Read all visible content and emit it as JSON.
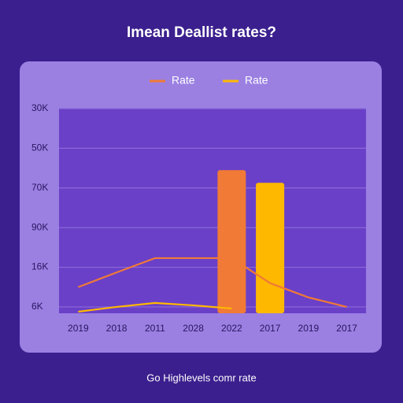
{
  "chart_data": {
    "type": "bar-line",
    "title": "Imean Deallist rates?",
    "caption": "Go Highlevels comr rate",
    "categories": [
      "2019",
      "2018",
      "2011",
      "2028",
      "2022",
      "2017",
      "2019",
      "2017"
    ],
    "series": [
      {
        "name": "Rate",
        "color": "#f07a36",
        "values": [
          0.5,
          0.87,
          1.23,
          1.23,
          1.23,
          0.6,
          0.24,
          0
        ],
        "bar_values": [
          null,
          null,
          null,
          null,
          3.45,
          null,
          null,
          null
        ]
      },
      {
        "name": "Rate",
        "color": "#ffb800",
        "values": [
          -0.12,
          0,
          0.1,
          0.04,
          -0.04,
          null,
          null,
          null
        ],
        "bar_values": [
          null,
          null,
          null,
          null,
          null,
          3.13,
          null,
          null
        ]
      }
    ],
    "ylim": [
      -0.16,
      5
    ],
    "yticks": [
      {
        "value": 5,
        "label": "30K"
      },
      {
        "value": 4,
        "label": "50K"
      },
      {
        "value": 3,
        "label": "70K"
      },
      {
        "value": 2,
        "label": "90K"
      },
      {
        "value": 1,
        "label": "16K"
      },
      {
        "value": 0,
        "label": "6K"
      }
    ],
    "grid": true
  }
}
